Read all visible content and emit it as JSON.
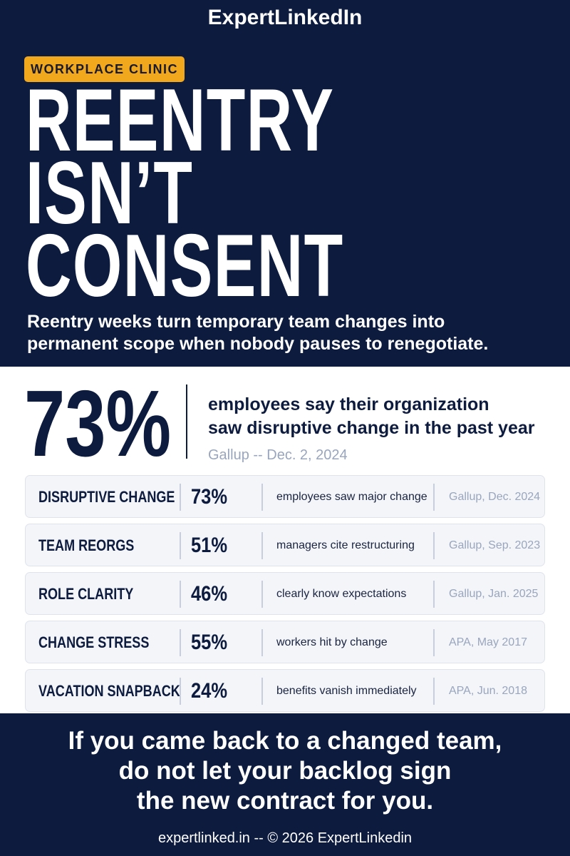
{
  "brand": "ExpertLinkedIn",
  "tag": "WORKPLACE CLINIC",
  "headline": [
    "REENTRY",
    "ISN’T",
    "CONSENT"
  ],
  "dek": [
    "Reentry weeks turn temporary team changes into",
    "permanent scope when nobody pauses to renegotiate."
  ],
  "hero_stat": {
    "value": "73%",
    "description": [
      "employees say their organization",
      "saw disruptive change in the past year"
    ],
    "source": "Gallup -- Dec. 2, 2024"
  },
  "rows": [
    {
      "label": "DISRUPTIVE CHANGE",
      "pct": "73%",
      "desc": "employees saw major change",
      "source": "Gallup, Dec. 2024"
    },
    {
      "label": "TEAM REORGS",
      "pct": "51%",
      "desc": "managers cite restructuring",
      "source": "Gallup, Sep. 2023"
    },
    {
      "label": "ROLE CLARITY",
      "pct": "46%",
      "desc": "clearly know expectations",
      "source": "Gallup, Jan. 2025"
    },
    {
      "label": "CHANGE STRESS",
      "pct": "55%",
      "desc": "workers hit by change",
      "source": "APA, May 2017"
    },
    {
      "label": "VACATION SNAPBACK",
      "pct": "24%",
      "desc": "benefits vanish immediately",
      "source": "APA, Jun. 2018"
    }
  ],
  "cta": [
    "If you came back to a changed team,",
    "do not let your backlog sign",
    "the new contract for you."
  ],
  "footer": "expertlinked.in -- © 2026 ExpertLinkedin",
  "colors": {
    "navy": "#0d1b3e",
    "accent": "#f2a81d",
    "muted": "#9aa6bd"
  }
}
